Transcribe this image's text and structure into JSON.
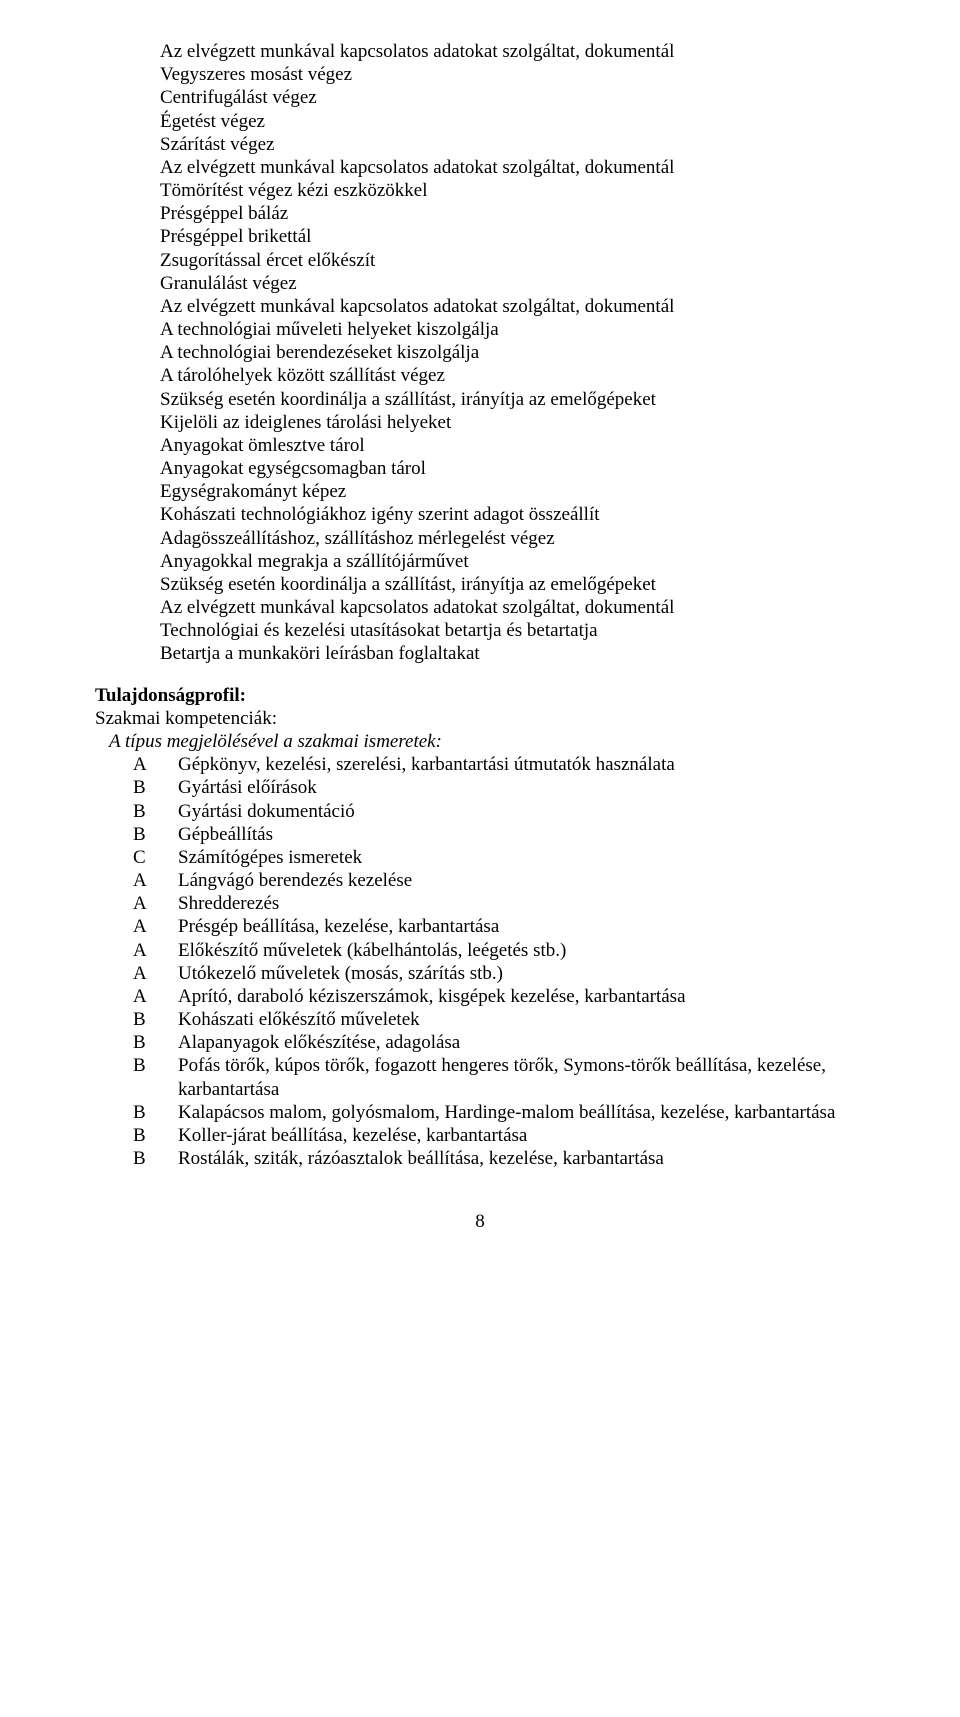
{
  "text_color": "#000000",
  "background_color": "#ffffff",
  "font_family": "Times New Roman",
  "base_fontsize": 19,
  "block1": {
    "lines": [
      "Az elvégzett munkával kapcsolatos adatokat szolgáltat, dokumentál",
      "Vegyszeres mosást végez",
      "Centrifugálást végez",
      "Égetést végez",
      "Szárítást végez",
      "Az elvégzett munkával kapcsolatos adatokat szolgáltat, dokumentál",
      "Tömörítést végez kézi eszközökkel",
      "Présgéppel báláz",
      "Présgéppel brikettál",
      "Zsugorítással ércet előkészít",
      "Granulálást végez",
      "Az elvégzett munkával kapcsolatos adatokat szolgáltat, dokumentál",
      "A technológiai műveleti helyeket kiszolgálja",
      "A technológiai berendezéseket kiszolgálja",
      "A tárolóhelyek között szállítást végez",
      "Szükség esetén koordinálja a szállítást, irányítja az emelőgépeket",
      "Kijelöli az ideiglenes tárolási helyeket",
      "Anyagokat ömlesztve tárol",
      "Anyagokat egységcsomagban tárol",
      "Egységrakományt képez",
      "Kohászati technológiákhoz igény szerint adagot összeállít",
      "Adagösszeállításhoz, szállításhoz mérlegelést végez",
      "Anyagokkal megrakja a szállítójárművet",
      "Szükség esetén koordinálja a szállítást, irányítja az emelőgépeket",
      "Az elvégzett munkával kapcsolatos adatokat szolgáltat, dokumentál",
      "Technológiai és kezelési utasításokat betartja és betartatja",
      "Betartja a munkaköri leírásban foglaltakat"
    ]
  },
  "section": {
    "heading": "Tulajdonságprofil:",
    "sub": "Szakmai kompetenciák:",
    "italic": "A típus megjelölésével a szakmai ismeretek:"
  },
  "competencies": [
    {
      "letter": "A",
      "text": "Gépkönyv, kezelési, szerelési, karbantartási útmutatók használata"
    },
    {
      "letter": "B",
      "text": "Gyártási előírások"
    },
    {
      "letter": "B",
      "text": "Gyártási dokumentáció"
    },
    {
      "letter": "B",
      "text": "Gépbeállítás"
    },
    {
      "letter": "C",
      "text": "Számítógépes ismeretek"
    },
    {
      "letter": "A",
      "text": "Lángvágó berendezés kezelése"
    },
    {
      "letter": "A",
      "text": "Shredderezés"
    },
    {
      "letter": "A",
      "text": "Présgép beállítása, kezelése, karbantartása"
    },
    {
      "letter": "A",
      "text": "Előkészítő műveletek (kábelhántolás, leégetés stb.)"
    },
    {
      "letter": "A",
      "text": "Utókezelő műveletek (mosás, szárítás stb.)"
    },
    {
      "letter": "A",
      "text": "Aprító, daraboló kéziszerszámok, kisgépek kezelése, karbantartása"
    },
    {
      "letter": "B",
      "text": "Kohászati előkészítő műveletek"
    },
    {
      "letter": "B",
      "text": "Alapanyagok előkészítése, adagolása"
    },
    {
      "letter": "B",
      "text": "Pofás törők, kúpos törők, fogazott hengeres törők, Symons-törők beállítása, kezelése, karbantartása"
    },
    {
      "letter": "B",
      "text": "Kalapácsos malom, golyósmalom, Hardinge-malom beállítása, kezelése, karbantartása"
    },
    {
      "letter": "B",
      "text": "Koller-járat beállítása, kezelése, karbantartása"
    },
    {
      "letter": "B",
      "text": "Rostálák, sziták, rázóasztalok beállítása, kezelése, karbantartása"
    }
  ],
  "page_number": "8"
}
